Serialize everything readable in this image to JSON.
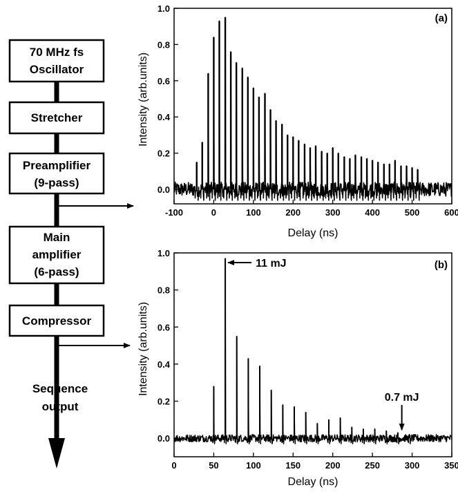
{
  "diagram": {
    "boxes": [
      {
        "lines": [
          "70 MHz fs",
          "Oscillator"
        ]
      },
      {
        "lines": [
          "Stretcher"
        ]
      },
      {
        "lines": [
          "Preamplifier",
          "(9-pass)"
        ]
      },
      {
        "lines": [
          "Main",
          "amplifier",
          "(6-pass)"
        ]
      },
      {
        "lines": [
          "Compressor"
        ]
      }
    ],
    "output_lines": [
      "Sequence",
      "output"
    ]
  },
  "chart_data": [
    {
      "type": "line",
      "panel_label": "(a)",
      "xlabel": "Delay (ns)",
      "ylabel": "Intensity (arb.units)",
      "xlim": [
        -100,
        600
      ],
      "ylim": [
        -0.08,
        1.0
      ],
      "xticks": [
        -100,
        0,
        100,
        200,
        300,
        400,
        500,
        600
      ],
      "yticks": [
        0.0,
        0.2,
        0.4,
        0.6,
        0.8,
        1.0
      ],
      "x_tick_labels": [
        "-100",
        "0",
        "100",
        "200",
        "300",
        "400",
        "500",
        "600"
      ],
      "y_tick_labels": [
        "0.0",
        "0.2",
        "0.4",
        "0.6",
        "0.8",
        "1.0"
      ],
      "baseline_noise": 0.04,
      "pulse_spacing_ns": 14.3,
      "x": [
        -43,
        -29,
        -14,
        0,
        14,
        29,
        43,
        57,
        72,
        86,
        100,
        114,
        129,
        143,
        157,
        172,
        186,
        200,
        214,
        229,
        243,
        257,
        272,
        286,
        300,
        314,
        329,
        343,
        357,
        372,
        386,
        400,
        414,
        429,
        443,
        457,
        472,
        486,
        500,
        514
      ],
      "values": [
        0.15,
        0.26,
        0.64,
        0.84,
        0.93,
        0.95,
        0.76,
        0.7,
        0.67,
        0.62,
        0.56,
        0.51,
        0.53,
        0.44,
        0.38,
        0.36,
        0.3,
        0.29,
        0.27,
        0.25,
        0.23,
        0.24,
        0.21,
        0.2,
        0.23,
        0.2,
        0.18,
        0.17,
        0.19,
        0.18,
        0.17,
        0.16,
        0.15,
        0.14,
        0.14,
        0.16,
        0.13,
        0.13,
        0.12,
        0.11
      ]
    },
    {
      "type": "line",
      "panel_label": "(b)",
      "xlabel": "Delay (ns)",
      "ylabel": "Intensity (arb.units)",
      "xlim": [
        0,
        350
      ],
      "ylim": [
        -0.1,
        1.0
      ],
      "xticks": [
        0,
        50,
        100,
        150,
        200,
        250,
        300,
        350
      ],
      "yticks": [
        0.0,
        0.2,
        0.4,
        0.6,
        0.8,
        1.0
      ],
      "x_tick_labels": [
        "0",
        "50",
        "100",
        "150",
        "200",
        "250",
        "300",
        "350"
      ],
      "y_tick_labels": [
        "0.0",
        "0.2",
        "0.4",
        "0.6",
        "0.8",
        "1.0"
      ],
      "baseline_noise": 0.02,
      "x": [
        50,
        64.5,
        79,
        93.5,
        108,
        122.5,
        137,
        151.5,
        166,
        180.5,
        195,
        209.5,
        224,
        238.5,
        253,
        267.5,
        282,
        296.5
      ],
      "values": [
        0.28,
        0.97,
        0.55,
        0.43,
        0.39,
        0.26,
        0.18,
        0.17,
        0.14,
        0.08,
        0.1,
        0.11,
        0.06,
        0.05,
        0.05,
        0.04,
        0.03,
        0.02
      ],
      "annotations": [
        {
          "text": "11 mJ",
          "x": 64.5,
          "y": 0.97
        },
        {
          "text": "0.7 mJ",
          "x": 287,
          "y": 0.03
        }
      ]
    }
  ]
}
